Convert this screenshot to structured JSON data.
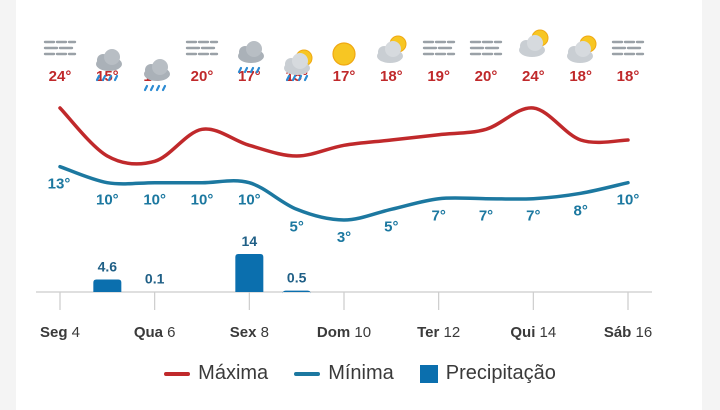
{
  "colors": {
    "max": "#c0292b",
    "min": "#1c78a0",
    "precip": "#0b6fae",
    "axis": "#cccccc",
    "tick": "#3a3a3a"
  },
  "legend": {
    "max_label": "Máxima",
    "min_label": "Mínima",
    "precip_label": "Precipitação"
  },
  "chart_data": {
    "type": "line",
    "x_labels": [
      {
        "day": "Seg",
        "date": "4"
      },
      {
        "day": "Qua",
        "date": "6"
      },
      {
        "day": "Sex",
        "date": "8"
      },
      {
        "day": "Dom",
        "date": "10"
      },
      {
        "day": "Ter",
        "date": "12"
      },
      {
        "day": "Qui",
        "date": "14"
      },
      {
        "day": "Sáb",
        "date": "16"
      }
    ],
    "series": [
      {
        "name": "Máxima",
        "unit": "°",
        "values": [
          24,
          15,
          14,
          20,
          17,
          15,
          17,
          18,
          19,
          20,
          24,
          18,
          18
        ]
      },
      {
        "name": "Mínima",
        "unit": "°",
        "values": [
          13,
          10,
          10,
          10,
          10,
          5,
          3,
          5,
          7,
          7,
          7,
          8,
          10
        ]
      },
      {
        "name": "Precipitação",
        "type": "bar",
        "values": [
          null,
          4.6,
          0.1,
          null,
          14,
          0.5,
          null,
          null,
          null,
          null,
          null,
          null,
          null
        ]
      }
    ],
    "icons": [
      "fog-icon",
      "rain-cloud-icon",
      "rain-cloud-icon",
      "fog-icon",
      "rain-cloud-icon",
      "sun-rain-cloud-icon",
      "sun-icon",
      "sun-cloud-icon",
      "fog-icon",
      "fog-icon",
      "sun-cloud-icon",
      "sun-cloud-icon",
      "fog-icon"
    ]
  }
}
